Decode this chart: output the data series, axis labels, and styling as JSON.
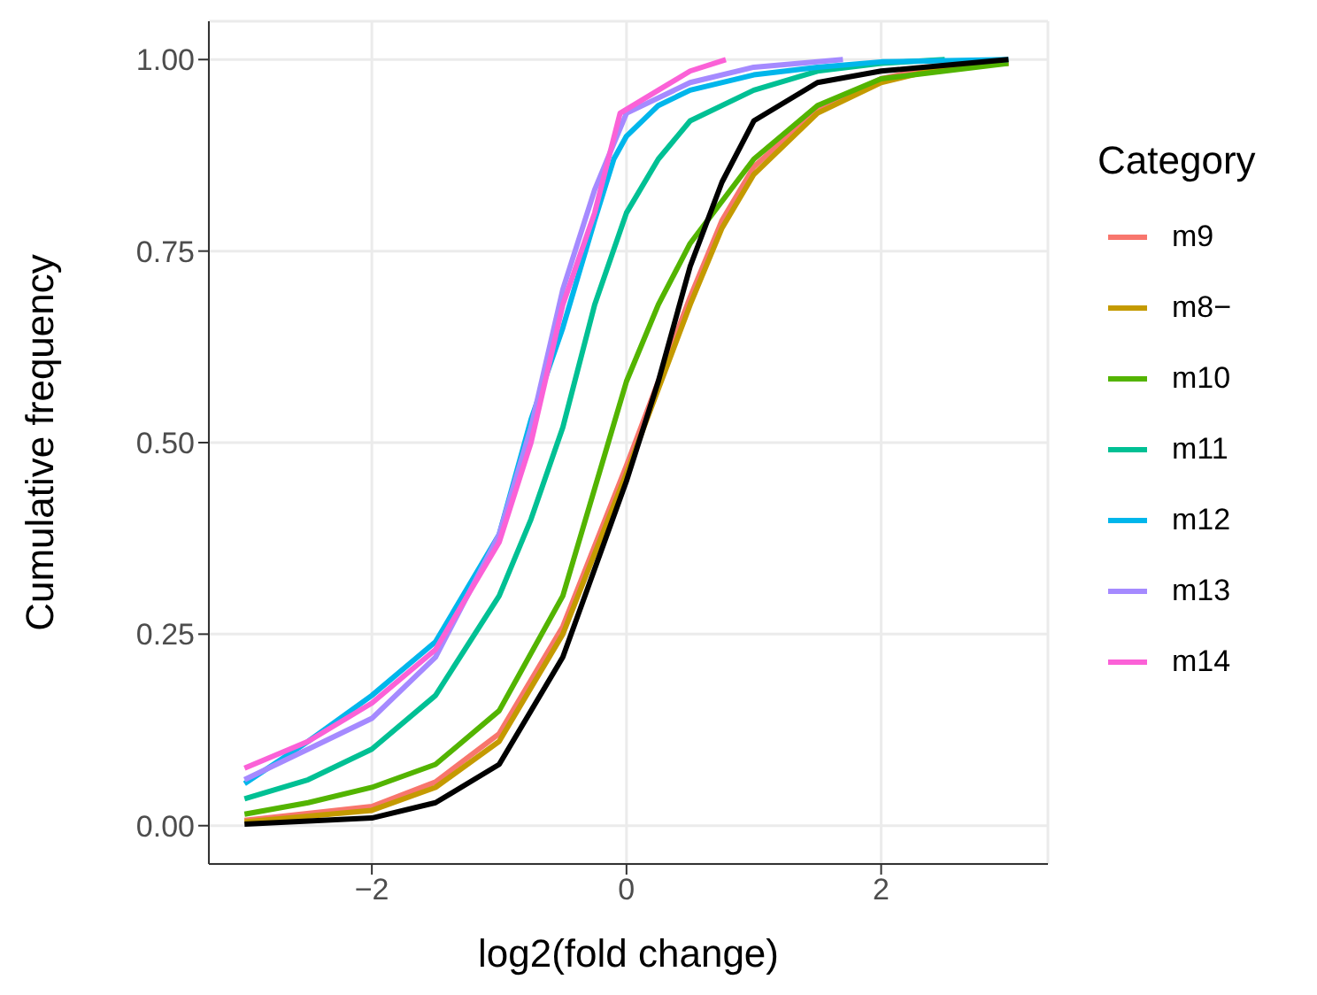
{
  "chart_data": {
    "type": "line",
    "xlabel": "log2(fold change)",
    "ylabel": "Cumulative frequency",
    "legend_title": "Category",
    "legend": "right",
    "grid": true,
    "xlim": [
      -3.28,
      3.31
    ],
    "xticks": [
      -2,
      0,
      2
    ],
    "ylim": [
      -0.05,
      1.05
    ],
    "yticks": [
      {
        "value": 0,
        "label": "0.00"
      },
      {
        "value": 0.25,
        "label": "0.25"
      },
      {
        "value": 0.5,
        "label": "0.50"
      },
      {
        "value": 0.75,
        "label": "0.75"
      },
      {
        "value": 1,
        "label": "1.00"
      }
    ],
    "series": [
      {
        "name": "m9",
        "color": "#f8766d",
        "x": [
          -3,
          -2,
          -1.5,
          -1,
          -0.5,
          0,
          0.25,
          0.5,
          0.75,
          1,
          1.5,
          2,
          2.5,
          3
        ],
        "values": [
          0.007,
          0.025,
          0.057,
          0.12,
          0.26,
          0.47,
          0.58,
          0.69,
          0.79,
          0.86,
          0.935,
          0.975,
          0.993,
          0.998
        ]
      },
      {
        "name": "m8−",
        "color": "#c49a00",
        "x": [
          -3,
          -2,
          -1.5,
          -1,
          -0.5,
          0,
          0.25,
          0.5,
          0.75,
          1,
          1.5,
          2,
          2.5,
          3
        ],
        "values": [
          0.005,
          0.02,
          0.05,
          0.11,
          0.25,
          0.46,
          0.57,
          0.68,
          0.78,
          0.85,
          0.93,
          0.97,
          0.99,
          0.995
        ]
      },
      {
        "name": "m10",
        "color": "#53b400",
        "x": [
          -3,
          -2.5,
          -2,
          -1.5,
          -1,
          -0.5,
          0,
          0.25,
          0.5,
          1,
          1.5,
          2,
          3
        ],
        "values": [
          0.015,
          0.03,
          0.05,
          0.08,
          0.15,
          0.3,
          0.58,
          0.68,
          0.76,
          0.87,
          0.94,
          0.975,
          0.995
        ]
      },
      {
        "name": "m11",
        "color": "#00c094",
        "x": [
          -3,
          -2.5,
          -2,
          -1.5,
          -1,
          -0.75,
          -0.5,
          -0.25,
          0,
          0.25,
          0.5,
          1,
          1.5,
          2,
          2.5
        ],
        "values": [
          0.035,
          0.06,
          0.1,
          0.17,
          0.3,
          0.4,
          0.52,
          0.68,
          0.8,
          0.87,
          0.92,
          0.96,
          0.985,
          0.995,
          1
        ]
      },
      {
        "name": "m12",
        "color": "#00b6eb",
        "x": [
          -3,
          -2.5,
          -2,
          -1.5,
          -1,
          -0.75,
          -0.5,
          -0.25,
          -0.1,
          0,
          0.25,
          0.5,
          1,
          1.5,
          2,
          3
        ],
        "values": [
          0.055,
          0.11,
          0.17,
          0.24,
          0.38,
          0.53,
          0.65,
          0.79,
          0.87,
          0.9,
          0.94,
          0.96,
          0.98,
          0.99,
          0.997,
          1
        ]
      },
      {
        "name": "m13",
        "color": "#a58aff",
        "x": [
          -3,
          -2.5,
          -2,
          -1.5,
          -1,
          -0.75,
          -0.5,
          -0.25,
          -0.1,
          0,
          0.5,
          1,
          1.7
        ],
        "values": [
          0.06,
          0.1,
          0.14,
          0.22,
          0.38,
          0.52,
          0.7,
          0.83,
          0.89,
          0.93,
          0.97,
          0.99,
          1
        ]
      },
      {
        "name": "m14",
        "color": "#fb61d7",
        "x": [
          -3,
          -2.5,
          -2,
          -1.5,
          -1,
          -0.75,
          -0.5,
          -0.25,
          -0.05,
          0.25,
          0.5,
          0.78
        ],
        "values": [
          0.075,
          0.11,
          0.16,
          0.23,
          0.37,
          0.5,
          0.68,
          0.8,
          0.93,
          0.96,
          0.985,
          1
        ]
      },
      {
        "color": "#000000",
        "x": [
          -3,
          -2,
          -1.5,
          -1,
          -0.5,
          0,
          0.25,
          0.5,
          0.75,
          1,
          1.5,
          2,
          3
        ],
        "values": [
          0.002,
          0.01,
          0.03,
          0.08,
          0.22,
          0.45,
          0.58,
          0.73,
          0.84,
          0.92,
          0.97,
          0.985,
          1
        ]
      }
    ]
  }
}
